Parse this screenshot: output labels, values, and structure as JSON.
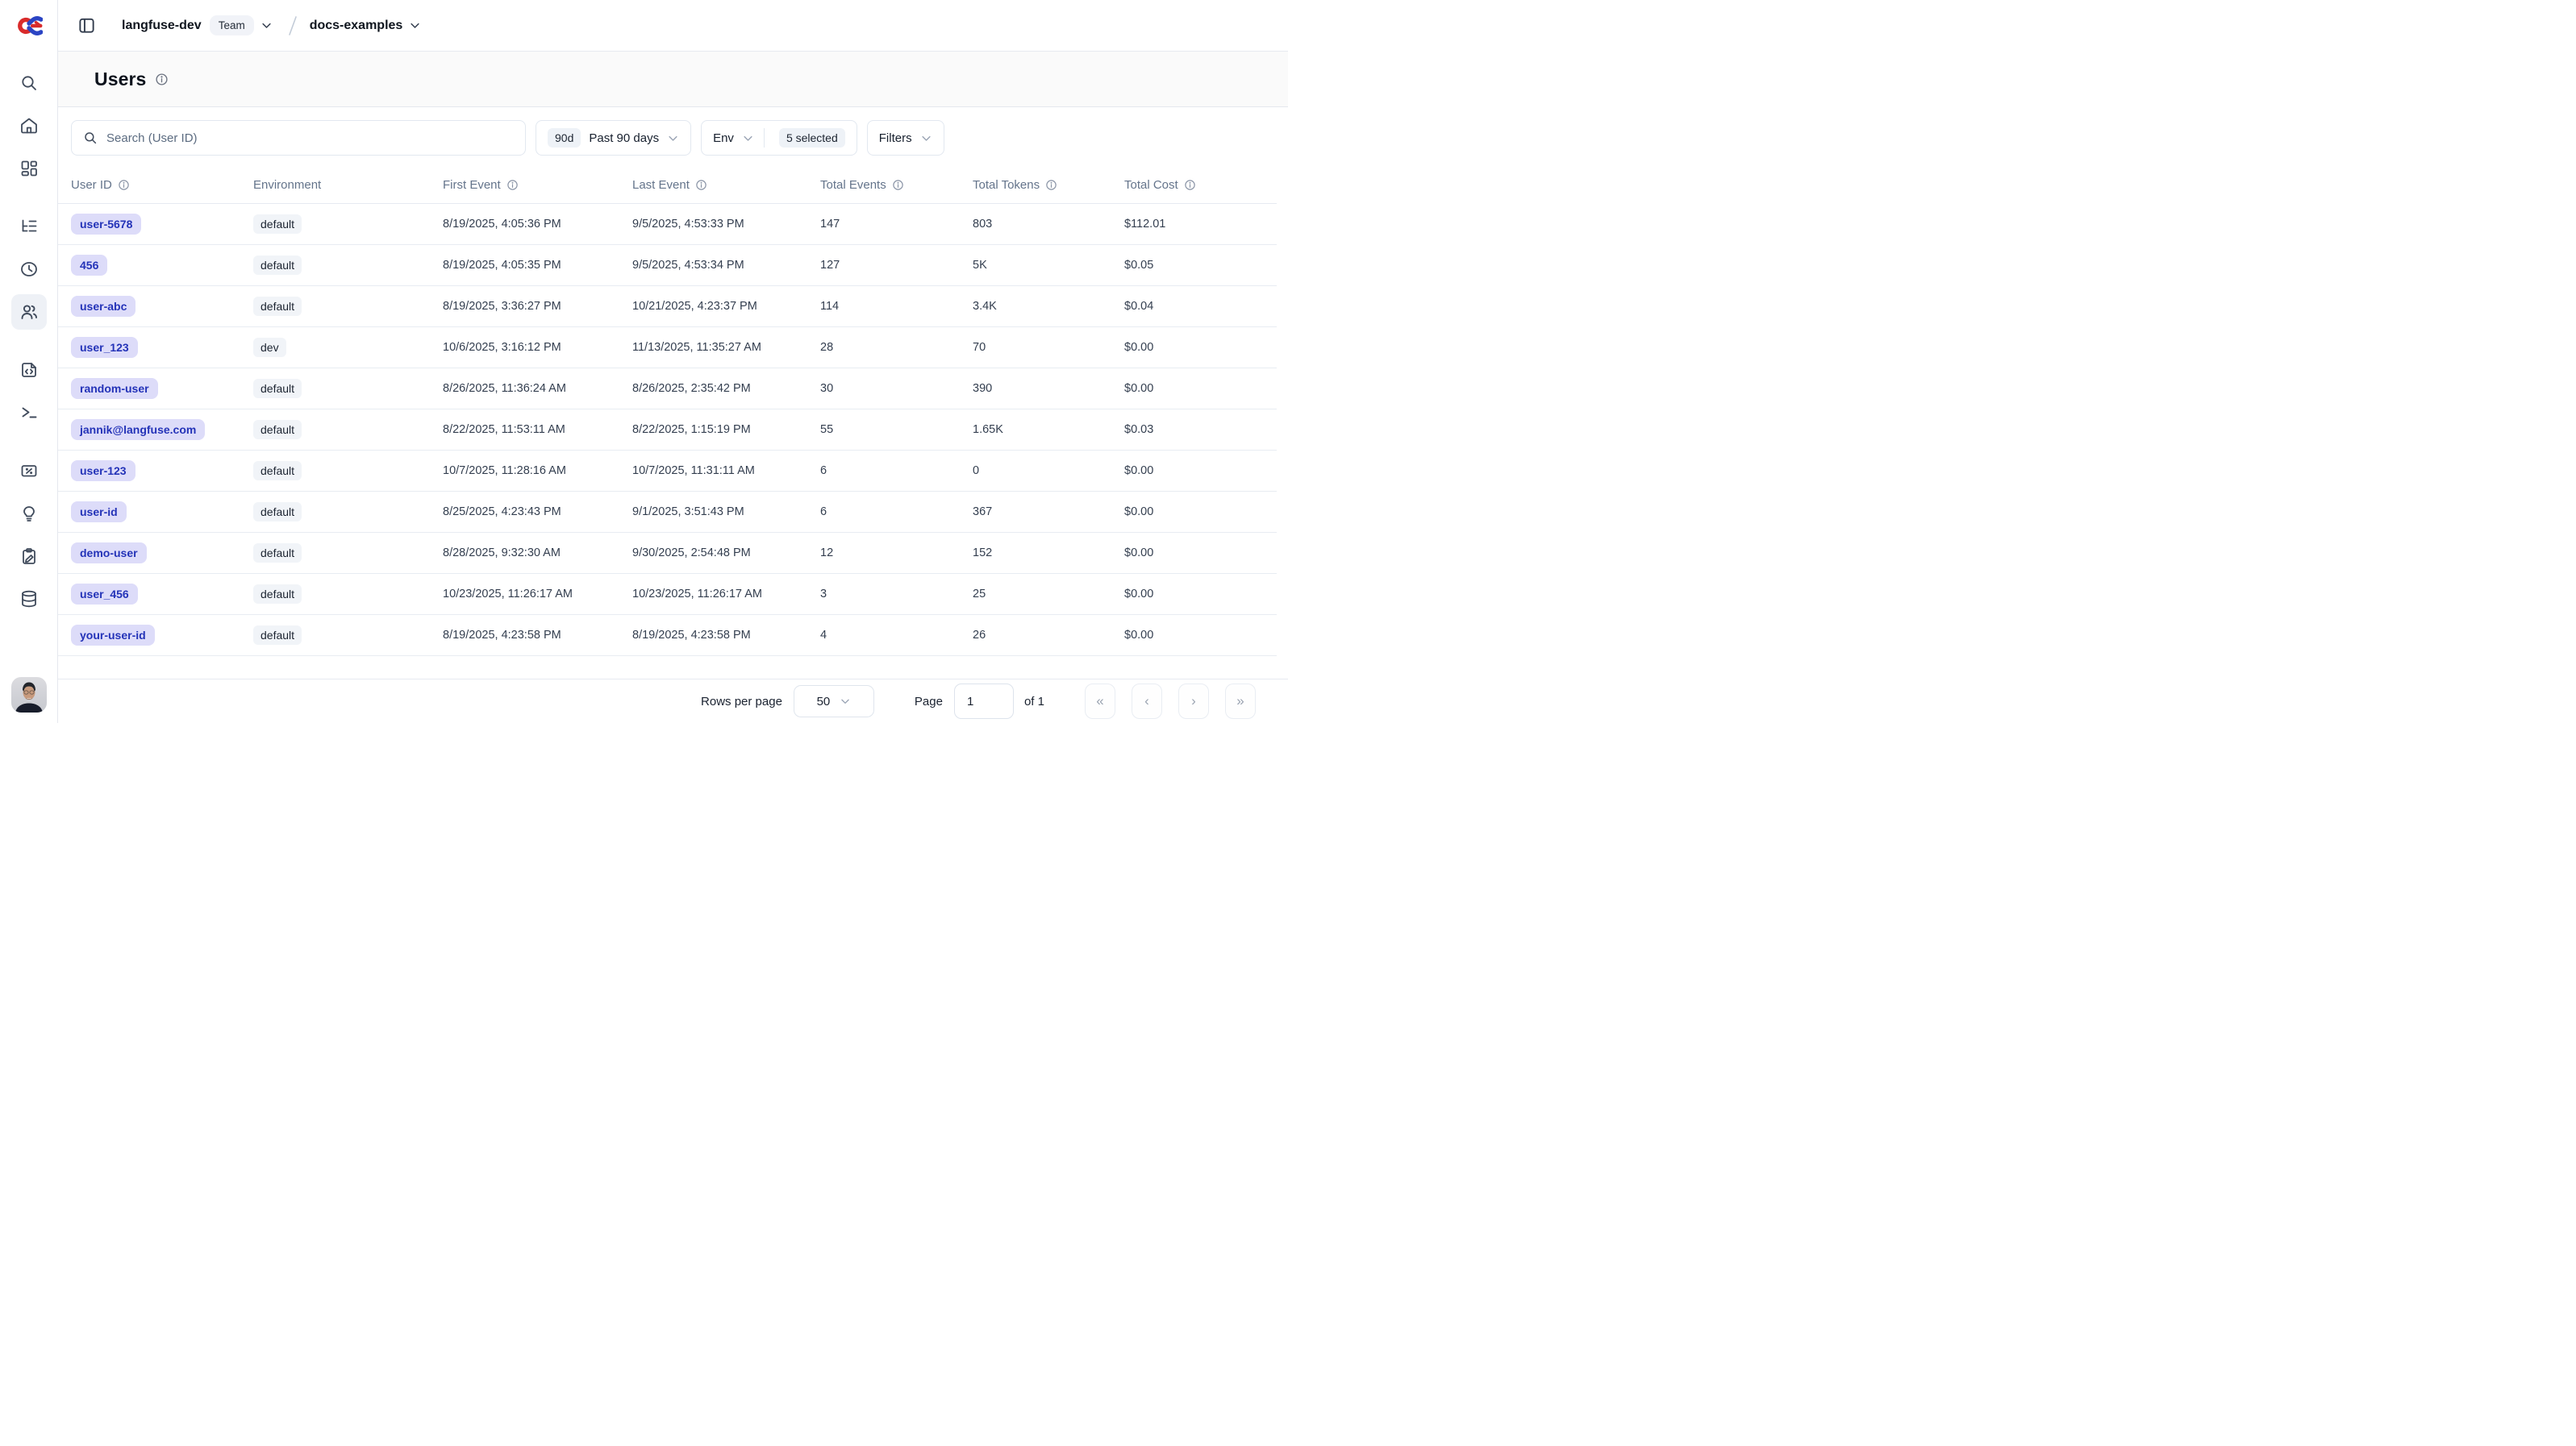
{
  "topbar": {
    "org_name": "langfuse-dev",
    "org_badge": "Team",
    "project_name": "docs-examples"
  },
  "sidebar": {
    "items": [
      {
        "icon": "search"
      },
      {
        "icon": "home"
      },
      {
        "icon": "dashboard-grid"
      },
      {
        "icon": "trace-tree"
      },
      {
        "icon": "sessions-clock"
      },
      {
        "icon": "users",
        "active": true
      },
      {
        "icon": "prompts-file-code"
      },
      {
        "icon": "playground-terminal"
      },
      {
        "icon": "scores-card"
      },
      {
        "icon": "evals-lightbulb"
      },
      {
        "icon": "annotation-clipboard"
      },
      {
        "icon": "datasets-database"
      }
    ]
  },
  "page": {
    "title": "Users"
  },
  "toolbar": {
    "search_placeholder": "Search (User ID)",
    "date_range_badge": "90d",
    "date_range_label": "Past 90 days",
    "env_label": "Env",
    "env_selected_badge": "5 selected",
    "filters_label": "Filters"
  },
  "table": {
    "columns": [
      {
        "label": "User ID",
        "info": true
      },
      {
        "label": "Environment",
        "info": false
      },
      {
        "label": "First Event",
        "info": true
      },
      {
        "label": "Last Event",
        "info": true
      },
      {
        "label": "Total Events",
        "info": true
      },
      {
        "label": "Total Tokens",
        "info": true
      },
      {
        "label": "Total Cost",
        "info": true
      }
    ],
    "rows": [
      {
        "user_id": "user-5678",
        "environment": "default",
        "first_event": "8/19/2025, 4:05:36 PM",
        "last_event": "9/5/2025, 4:53:33 PM",
        "total_events": "147",
        "total_tokens": "803",
        "total_cost": "$112.01"
      },
      {
        "user_id": "456",
        "environment": "default",
        "first_event": "8/19/2025, 4:05:35 PM",
        "last_event": "9/5/2025, 4:53:34 PM",
        "total_events": "127",
        "total_tokens": "5K",
        "total_cost": "$0.05"
      },
      {
        "user_id": "user-abc",
        "environment": "default",
        "first_event": "8/19/2025, 3:36:27 PM",
        "last_event": "10/21/2025, 4:23:37 PM",
        "total_events": "114",
        "total_tokens": "3.4K",
        "total_cost": "$0.04"
      },
      {
        "user_id": "user_123",
        "environment": "dev",
        "first_event": "10/6/2025, 3:16:12 PM",
        "last_event": "11/13/2025, 11:35:27 AM",
        "total_events": "28",
        "total_tokens": "70",
        "total_cost": "$0.00"
      },
      {
        "user_id": "random-user",
        "environment": "default",
        "first_event": "8/26/2025, 11:36:24 AM",
        "last_event": "8/26/2025, 2:35:42 PM",
        "total_events": "30",
        "total_tokens": "390",
        "total_cost": "$0.00"
      },
      {
        "user_id": "jannik@langfuse.com",
        "environment": "default",
        "first_event": "8/22/2025, 11:53:11 AM",
        "last_event": "8/22/2025, 1:15:19 PM",
        "total_events": "55",
        "total_tokens": "1.65K",
        "total_cost": "$0.03"
      },
      {
        "user_id": "user-123",
        "environment": "default",
        "first_event": "10/7/2025, 11:28:16 AM",
        "last_event": "10/7/2025, 11:31:11 AM",
        "total_events": "6",
        "total_tokens": "0",
        "total_cost": "$0.00"
      },
      {
        "user_id": "user-id",
        "environment": "default",
        "first_event": "8/25/2025, 4:23:43 PM",
        "last_event": "9/1/2025, 3:51:43 PM",
        "total_events": "6",
        "total_tokens": "367",
        "total_cost": "$0.00"
      },
      {
        "user_id": "demo-user",
        "environment": "default",
        "first_event": "8/28/2025, 9:32:30 AM",
        "last_event": "9/30/2025, 2:54:48 PM",
        "total_events": "12",
        "total_tokens": "152",
        "total_cost": "$0.00"
      },
      {
        "user_id": "user_456",
        "environment": "default",
        "first_event": "10/23/2025, 11:26:17 AM",
        "last_event": "10/23/2025, 11:26:17 AM",
        "total_events": "3",
        "total_tokens": "25",
        "total_cost": "$0.00"
      },
      {
        "user_id": "your-user-id",
        "environment": "default",
        "first_event": "8/19/2025, 4:23:58 PM",
        "last_event": "8/19/2025, 4:23:58 PM",
        "total_events": "4",
        "total_tokens": "26",
        "total_cost": "$0.00"
      }
    ]
  },
  "footer": {
    "rows_per_page_label": "Rows per page",
    "rows_per_page_value": "50",
    "page_label": "Page",
    "page_input_value": "1",
    "page_total_label": "of 1",
    "pagination_icons": [
      "«",
      "‹",
      "›",
      "»"
    ]
  },
  "colors": {
    "user_badge_bg": "#dddcf9",
    "user_badge_text": "#2433b8",
    "chip_bg": "#eef2f7",
    "active_nav_bg": "#eef1f6",
    "border": "#e8ecf2",
    "logo_red": "#d92b2b",
    "logo_blue": "#2b44c4"
  }
}
